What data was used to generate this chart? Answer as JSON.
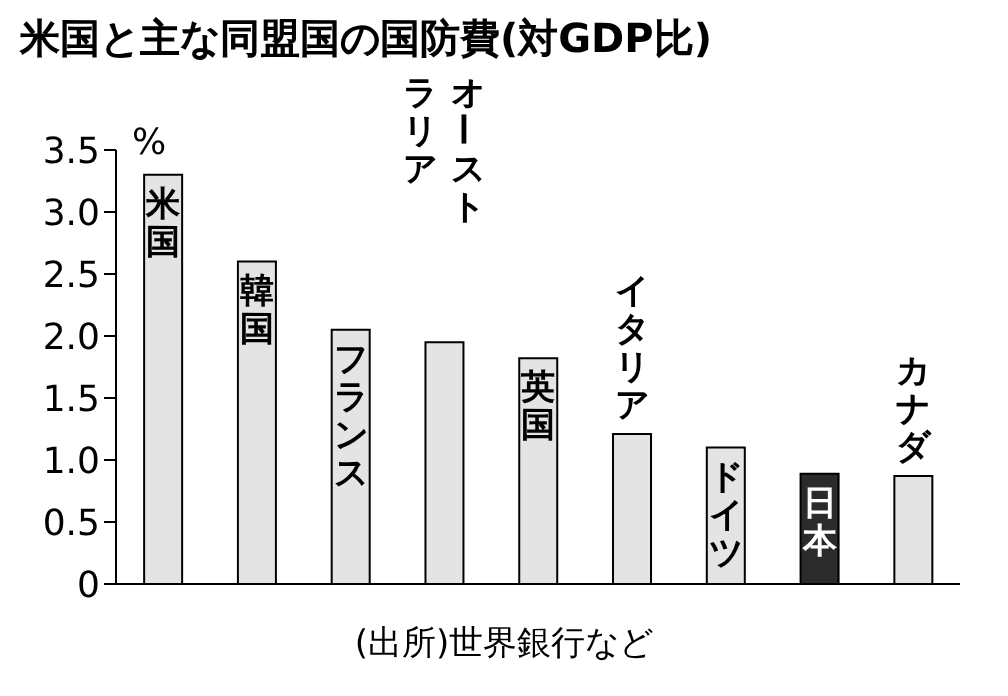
{
  "chart_data": {
    "type": "bar",
    "title": "米国と主な同盟国の国防費(対GDP比)",
    "ylabel": "%",
    "categories": [
      "米国",
      "韓国",
      "フランス",
      "オーストラリア",
      "英国",
      "イタリア",
      "ドイツ",
      "日本",
      "カナダ"
    ],
    "values": [
      3.3,
      2.6,
      2.05,
      1.95,
      1.82,
      1.21,
      1.1,
      0.89,
      0.87
    ],
    "colors": [
      "#e4e4e4",
      "#e4e4e4",
      "#e4e4e4",
      "#e4e4e4",
      "#e4e4e4",
      "#e4e4e4",
      "#e4e4e4",
      "#2b2b2b",
      "#e4e4e4"
    ],
    "ylim": [
      0,
      3.5
    ],
    "yticks": [
      0,
      0.5,
      {
        "value": 1,
        "label": "1.0"
      },
      1.5,
      {
        "value": 2,
        "label": "2.0"
      },
      2.5,
      {
        "value": 3,
        "label": "3.0"
      },
      3.5
    ],
    "grid": false,
    "annotations": [
      "(出所)世界銀行など"
    ]
  }
}
